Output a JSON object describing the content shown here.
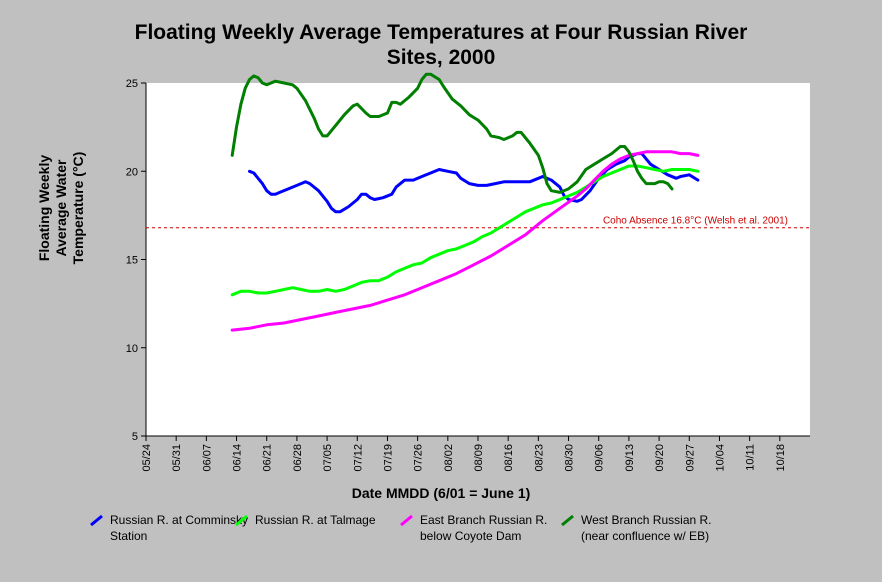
{
  "title_line1": "Floating Weekly Average Temperatures at Four Russian River",
  "title_line2": "Sites, 2000",
  "chart_data": {
    "type": "line",
    "title": "Floating Weekly Average Temperatures at Four Russian River Sites, 2000",
    "xlabel": "Date MMDD (6/01 = June 1)",
    "ylabel": "Floating Weekly Average Water Temperature (°C)",
    "ylim": [
      5,
      25
    ],
    "yticks": [
      5,
      10,
      15,
      20,
      25
    ],
    "xticks": [
      "05/24",
      "05/31",
      "06/07",
      "06/14",
      "06/21",
      "06/28",
      "07/05",
      "07/12",
      "07/19",
      "07/26",
      "08/02",
      "08/09",
      "08/16",
      "08/23",
      "08/30",
      "09/06",
      "09/13",
      "09/20",
      "09/27",
      "10/04",
      "10/11",
      "10/18"
    ],
    "x_unit": "days since 05/24",
    "grid": false,
    "reference_line": {
      "value": 16.8,
      "label": "Coho Absence 16.8°C (Welsh et al. 2001)",
      "color": "#cc0000"
    },
    "series": [
      {
        "name": "Russian R. at Comminsky Station",
        "color": "#0000ff",
        "points": [
          [
            24,
            20.0
          ],
          [
            25,
            19.9
          ],
          [
            26,
            19.6
          ],
          [
            27,
            19.3
          ],
          [
            28,
            18.9
          ],
          [
            29,
            18.7
          ],
          [
            30,
            18.7
          ],
          [
            31,
            18.8
          ],
          [
            33,
            19.0
          ],
          [
            35,
            19.2
          ],
          [
            37,
            19.4
          ],
          [
            38,
            19.3
          ],
          [
            40,
            18.9
          ],
          [
            42,
            18.3
          ],
          [
            43,
            17.9
          ],
          [
            44,
            17.7
          ],
          [
            45,
            17.7
          ],
          [
            47,
            18.0
          ],
          [
            49,
            18.4
          ],
          [
            50,
            18.7
          ],
          [
            51,
            18.7
          ],
          [
            52,
            18.5
          ],
          [
            53,
            18.4
          ],
          [
            55,
            18.5
          ],
          [
            57,
            18.7
          ],
          [
            58,
            19.1
          ],
          [
            60,
            19.5
          ],
          [
            62,
            19.5
          ],
          [
            64,
            19.7
          ],
          [
            66,
            19.9
          ],
          [
            68,
            20.1
          ],
          [
            70,
            20.0
          ],
          [
            72,
            19.9
          ],
          [
            73,
            19.6
          ],
          [
            75,
            19.3
          ],
          [
            77,
            19.2
          ],
          [
            79,
            19.2
          ],
          [
            81,
            19.3
          ],
          [
            83,
            19.4
          ],
          [
            85,
            19.4
          ],
          [
            87,
            19.4
          ],
          [
            89,
            19.4
          ],
          [
            91,
            19.6
          ],
          [
            92,
            19.7
          ],
          [
            94,
            19.5
          ],
          [
            96,
            19.1
          ],
          [
            97,
            18.6
          ],
          [
            98,
            18.4
          ],
          [
            100,
            18.3
          ],
          [
            101,
            18.4
          ],
          [
            103,
            18.9
          ],
          [
            105,
            19.6
          ],
          [
            107,
            20.1
          ],
          [
            109,
            20.4
          ],
          [
            111,
            20.6
          ],
          [
            112,
            20.8
          ],
          [
            114,
            21.0
          ],
          [
            115,
            21.0
          ],
          [
            116,
            20.7
          ],
          [
            117,
            20.4
          ],
          [
            119,
            20.1
          ],
          [
            121,
            19.8
          ],
          [
            123,
            19.6
          ],
          [
            124,
            19.7
          ],
          [
            126,
            19.8
          ],
          [
            128,
            19.5
          ]
        ]
      },
      {
        "name": "Russian R. at Talmage",
        "color": "#00ff00",
        "points": [
          [
            20,
            13.0
          ],
          [
            22,
            13.2
          ],
          [
            24,
            13.2
          ],
          [
            26,
            13.1
          ],
          [
            28,
            13.1
          ],
          [
            30,
            13.2
          ],
          [
            32,
            13.3
          ],
          [
            34,
            13.4
          ],
          [
            36,
            13.3
          ],
          [
            38,
            13.2
          ],
          [
            40,
            13.2
          ],
          [
            42,
            13.3
          ],
          [
            44,
            13.2
          ],
          [
            46,
            13.3
          ],
          [
            48,
            13.5
          ],
          [
            50,
            13.7
          ],
          [
            52,
            13.8
          ],
          [
            54,
            13.8
          ],
          [
            56,
            14.0
          ],
          [
            58,
            14.3
          ],
          [
            60,
            14.5
          ],
          [
            62,
            14.7
          ],
          [
            64,
            14.8
          ],
          [
            66,
            15.1
          ],
          [
            68,
            15.3
          ],
          [
            70,
            15.5
          ],
          [
            72,
            15.6
          ],
          [
            74,
            15.8
          ],
          [
            76,
            16.0
          ],
          [
            78,
            16.3
          ],
          [
            80,
            16.5
          ],
          [
            82,
            16.8
          ],
          [
            84,
            17.1
          ],
          [
            86,
            17.4
          ],
          [
            88,
            17.7
          ],
          [
            90,
            17.9
          ],
          [
            92,
            18.1
          ],
          [
            94,
            18.2
          ],
          [
            96,
            18.4
          ],
          [
            98,
            18.6
          ],
          [
            100,
            18.8
          ],
          [
            102,
            19.1
          ],
          [
            104,
            19.4
          ],
          [
            106,
            19.7
          ],
          [
            108,
            19.9
          ],
          [
            110,
            20.1
          ],
          [
            112,
            20.3
          ],
          [
            114,
            20.3
          ],
          [
            116,
            20.2
          ],
          [
            118,
            20.1
          ],
          [
            120,
            20.0
          ],
          [
            122,
            20.1
          ],
          [
            124,
            20.1
          ],
          [
            126,
            20.1
          ],
          [
            128,
            20.0
          ]
        ]
      },
      {
        "name": "East Branch Russian R. below Coyote Dam",
        "color": "#ff00ff",
        "points": [
          [
            20,
            11.0
          ],
          [
            24,
            11.1
          ],
          [
            28,
            11.3
          ],
          [
            32,
            11.4
          ],
          [
            36,
            11.6
          ],
          [
            40,
            11.8
          ],
          [
            44,
            12.0
          ],
          [
            48,
            12.2
          ],
          [
            52,
            12.4
          ],
          [
            56,
            12.7
          ],
          [
            60,
            13.0
          ],
          [
            64,
            13.4
          ],
          [
            68,
            13.8
          ],
          [
            72,
            14.2
          ],
          [
            76,
            14.7
          ],
          [
            80,
            15.2
          ],
          [
            84,
            15.8
          ],
          [
            88,
            16.4
          ],
          [
            92,
            17.2
          ],
          [
            96,
            17.9
          ],
          [
            100,
            18.6
          ],
          [
            102,
            19.0
          ],
          [
            104,
            19.5
          ],
          [
            106,
            20.0
          ],
          [
            108,
            20.4
          ],
          [
            110,
            20.7
          ],
          [
            112,
            20.9
          ],
          [
            114,
            21.0
          ],
          [
            116,
            21.1
          ],
          [
            118,
            21.1
          ],
          [
            120,
            21.1
          ],
          [
            122,
            21.1
          ],
          [
            124,
            21.0
          ],
          [
            126,
            21.0
          ],
          [
            128,
            20.9
          ]
        ]
      },
      {
        "name": "West Branch Russian R. (near confluence w/ EB)",
        "color": "#007f00",
        "points": [
          [
            20,
            20.9
          ],
          [
            21,
            22.5
          ],
          [
            22,
            23.8
          ],
          [
            23,
            24.7
          ],
          [
            24,
            25.2
          ],
          [
            25,
            25.4
          ],
          [
            26,
            25.3
          ],
          [
            27,
            25.0
          ],
          [
            28,
            24.9
          ],
          [
            29,
            25.0
          ],
          [
            30,
            25.1
          ],
          [
            32,
            25.0
          ],
          [
            34,
            24.9
          ],
          [
            35,
            24.7
          ],
          [
            37,
            24.0
          ],
          [
            39,
            23.0
          ],
          [
            40,
            22.4
          ],
          [
            41,
            22.0
          ],
          [
            42,
            22.0
          ],
          [
            44,
            22.6
          ],
          [
            46,
            23.2
          ],
          [
            48,
            23.7
          ],
          [
            49,
            23.8
          ],
          [
            51,
            23.3
          ],
          [
            52,
            23.1
          ],
          [
            54,
            23.1
          ],
          [
            56,
            23.3
          ],
          [
            57,
            23.9
          ],
          [
            58,
            23.9
          ],
          [
            59,
            23.8
          ],
          [
            61,
            24.2
          ],
          [
            63,
            24.7
          ],
          [
            64,
            25.2
          ],
          [
            65,
            25.5
          ],
          [
            66,
            25.5
          ],
          [
            68,
            25.2
          ],
          [
            69,
            24.8
          ],
          [
            71,
            24.1
          ],
          [
            73,
            23.7
          ],
          [
            75,
            23.2
          ],
          [
            77,
            22.9
          ],
          [
            79,
            22.4
          ],
          [
            80,
            22.0
          ],
          [
            82,
            21.9
          ],
          [
            83,
            21.8
          ],
          [
            85,
            22.0
          ],
          [
            86,
            22.2
          ],
          [
            87,
            22.2
          ],
          [
            89,
            21.6
          ],
          [
            91,
            20.9
          ],
          [
            92,
            20.2
          ],
          [
            93,
            19.3
          ],
          [
            94,
            18.9
          ],
          [
            96,
            18.8
          ],
          [
            98,
            19.0
          ],
          [
            100,
            19.4
          ],
          [
            102,
            20.1
          ],
          [
            104,
            20.4
          ],
          [
            106,
            20.7
          ],
          [
            108,
            21.0
          ],
          [
            110,
            21.4
          ],
          [
            111,
            21.4
          ],
          [
            112,
            21.1
          ],
          [
            113,
            20.6
          ],
          [
            114,
            20.0
          ],
          [
            115,
            19.6
          ],
          [
            116,
            19.3
          ],
          [
            118,
            19.3
          ],
          [
            119,
            19.4
          ],
          [
            120,
            19.4
          ],
          [
            121,
            19.3
          ],
          [
            122,
            19.0
          ]
        ]
      }
    ]
  }
}
